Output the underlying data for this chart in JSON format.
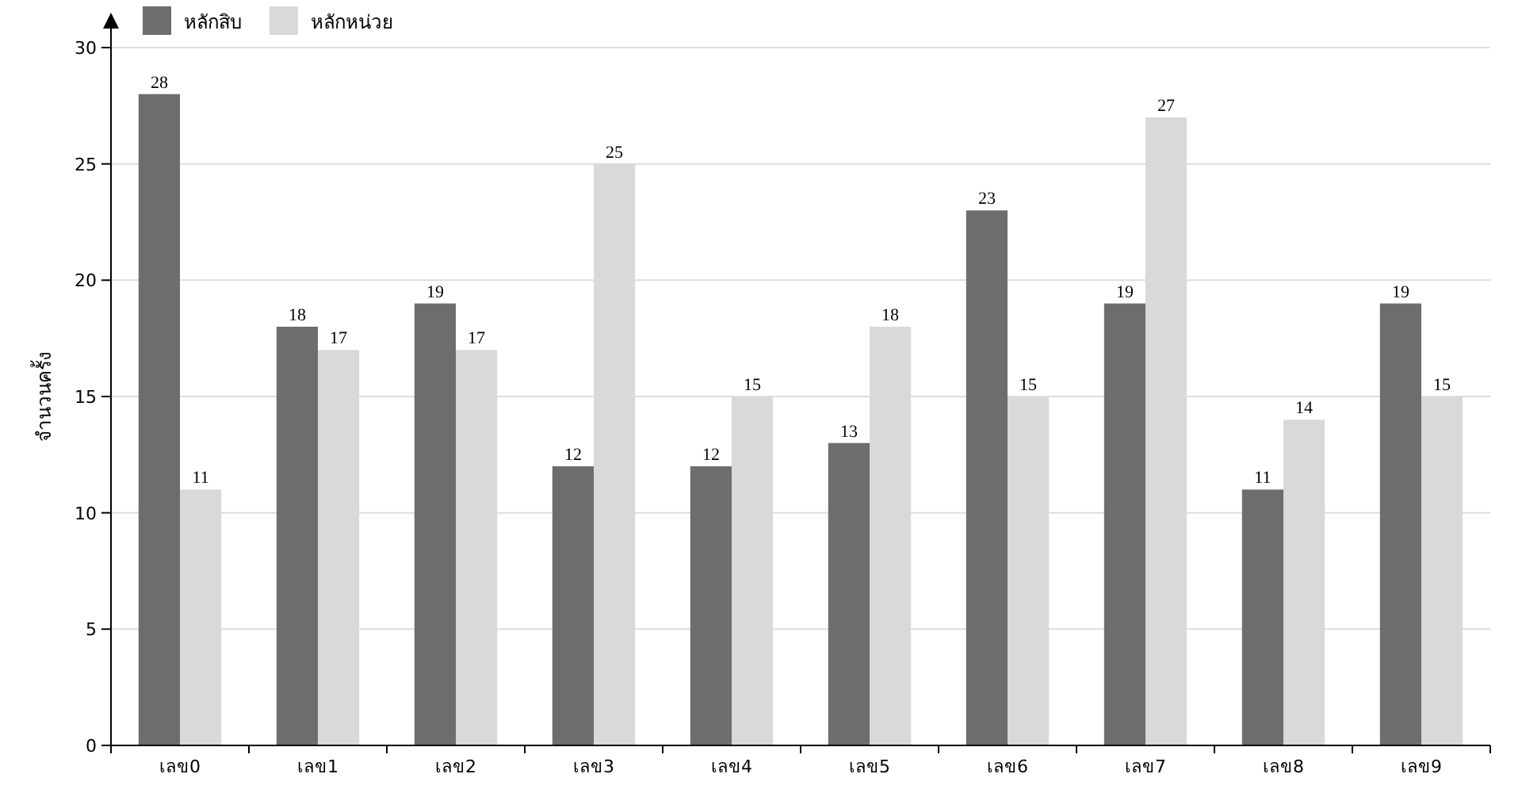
{
  "chart_data": {
    "type": "bar",
    "ylabel": "จำนวนครั้ง",
    "categories": [
      "เลข0",
      "เลข1",
      "เลข2",
      "เลข3",
      "เลข4",
      "เลข5",
      "เลข6",
      "เลข7",
      "เลข8",
      "เลข9"
    ],
    "series": [
      {
        "name": "หลักสิบ",
        "color": "#6d6d6f",
        "values": [
          28,
          18,
          19,
          12,
          12,
          13,
          23,
          19,
          11,
          19
        ]
      },
      {
        "name": "หลักหน่วย",
        "color": "#d9d9d9",
        "values": [
          11,
          17,
          17,
          25,
          15,
          18,
          15,
          27,
          14,
          15
        ]
      }
    ],
    "ylim": [
      0,
      30
    ],
    "yticks": [
      0,
      5,
      10,
      15,
      20,
      25,
      30
    ],
    "grid": "y",
    "legend": "top left",
    "data_labels": true
  }
}
